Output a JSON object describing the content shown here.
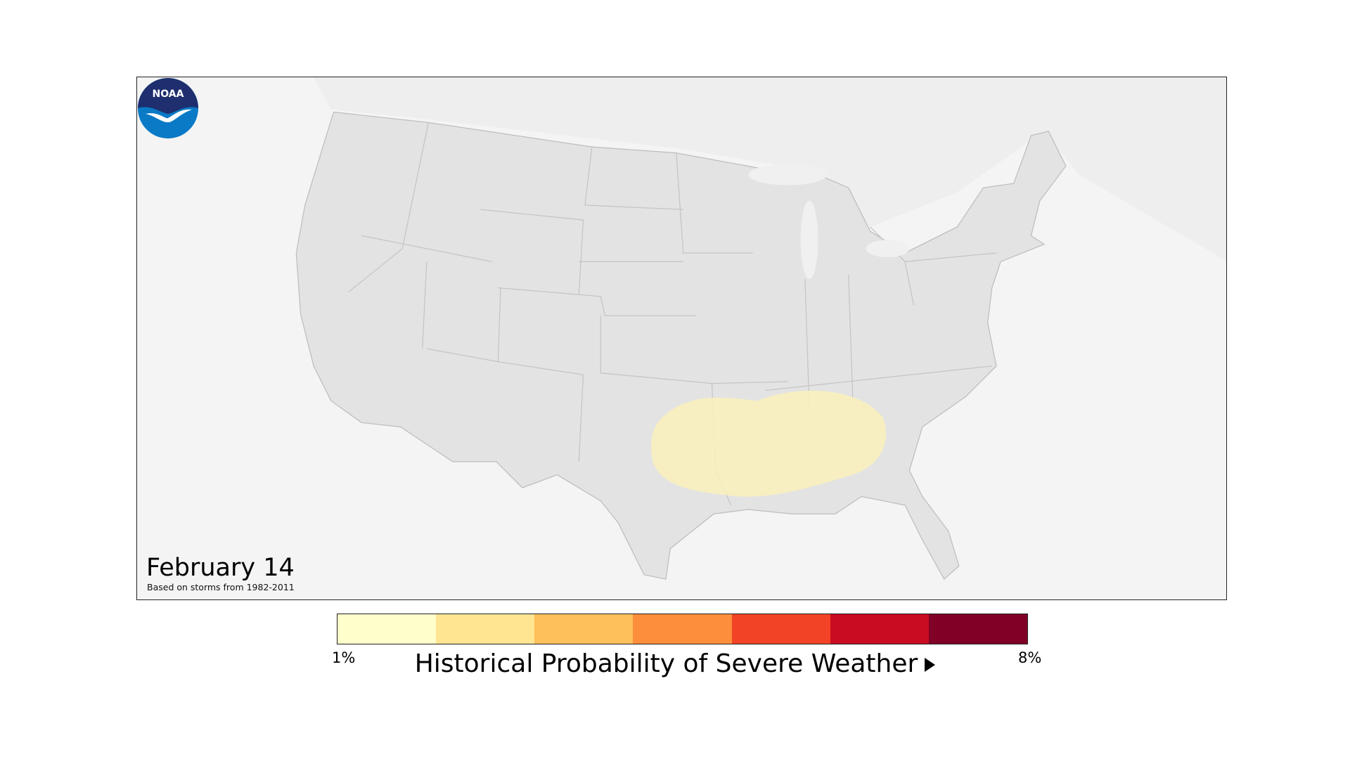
{
  "map": {
    "title": "February 14",
    "subtitle": "Based on storms from 1982-2011",
    "logo_text": "NOAA",
    "colors": {
      "land": "#e3e3e3",
      "background": "#f4f4f4",
      "probability_area": "#f8efbc"
    }
  },
  "legend": {
    "title": "Historical Probability of Severe Weather",
    "min_label": "1%",
    "max_label": "8%",
    "colors": [
      "#ffffcc",
      "#ffe592",
      "#fec05a",
      "#fd8e3c",
      "#f24326",
      "#c90c22",
      "#800026"
    ]
  }
}
